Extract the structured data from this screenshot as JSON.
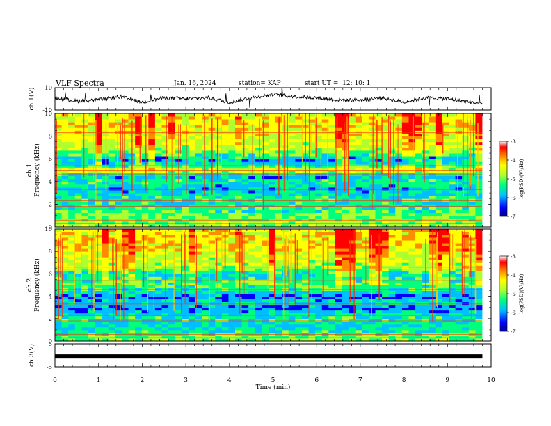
{
  "header": {
    "title": "VLF Spectra",
    "date": "Jan. 16, 2024",
    "station": "station= KAP",
    "start": "start UT =  12: 10: 1"
  },
  "chart_data": [
    {
      "type": "line",
      "panel": "ch1-waveform",
      "ylabel": "ch.1(V)",
      "ylim": [
        -10,
        10
      ],
      "ytick_labels": [
        "10",
        "-10"
      ],
      "xlim": [
        0,
        10
      ],
      "description_values": {
        "time_min": [
          0,
          0.5,
          1,
          1.5,
          2,
          2.5,
          3,
          3.5,
          4,
          4.5,
          5,
          5.5,
          6,
          6.5,
          7,
          7.5,
          8,
          8.5,
          9,
          9.5,
          9.8
        ],
        "level_v": [
          1,
          -2,
          -1,
          2,
          -3,
          1,
          0,
          1,
          -3,
          1,
          4,
          2,
          1,
          -1,
          -1,
          1,
          -3,
          1,
          0,
          -3,
          -4
        ]
      }
    },
    {
      "type": "heatmap",
      "panel": "ch1-spectrogram",
      "ylabel_top": "ch.1",
      "ylabel_bottom": "Frequency (kHz)",
      "ylim": [
        0,
        10
      ],
      "ytick_labels": [
        "0",
        "2",
        "4",
        "6",
        "8",
        "10"
      ],
      "xlim": [
        0,
        9.8
      ],
      "colorbar": {
        "label": "log(PSD)(V²/Hz)",
        "range": [
          -7,
          -3
        ],
        "tick_labels": [
          "-3",
          "-4",
          "-5",
          "-6",
          "-7"
        ]
      },
      "freq_profile_khz": [
        0,
        0.5,
        1,
        1.5,
        2,
        2.5,
        3,
        3.5,
        4,
        4.5,
        5,
        5.5,
        6,
        6.5,
        7,
        7.5,
        8,
        8.5,
        9,
        9.5,
        10
      ],
      "log_psd_profile": [
        -4.6,
        -4.9,
        -5.0,
        -5.2,
        -5.4,
        -5.3,
        -5.6,
        -5.7,
        -5.2,
        -5.8,
        -4.3,
        -5.5,
        -5.8,
        -5.0,
        -4.6,
        -4.6,
        -4.4,
        -4.3,
        -4.2,
        -4.2,
        -4.3
      ]
    },
    {
      "type": "heatmap",
      "panel": "ch2-spectrogram",
      "ylabel_top": "ch.2",
      "ylabel_bottom": "Frequency (kHz)",
      "ylim": [
        0,
        10
      ],
      "ytick_labels": [
        "0",
        "2",
        "4",
        "6",
        "8",
        "10"
      ],
      "xlim": [
        0,
        9.8
      ],
      "colorbar": {
        "label": "log(PSD)(V²/Hz)",
        "range": [
          -7,
          -3
        ],
        "tick_labels": [
          "-3",
          "-4",
          "-5",
          "-6",
          "-7"
        ]
      },
      "freq_profile_khz": [
        0,
        0.5,
        1,
        1.5,
        2,
        2.5,
        3,
        3.5,
        4,
        4.5,
        5,
        5.5,
        6,
        6.5,
        7,
        7.5,
        8,
        8.5,
        9,
        9.5,
        10
      ],
      "log_psd_profile": [
        -4.8,
        -5.1,
        -5.4,
        -5.5,
        -5.3,
        -5.6,
        -6.0,
        -5.5,
        -6.0,
        -5.4,
        -5.0,
        -5.3,
        -5.5,
        -4.8,
        -4.6,
        -4.6,
        -4.3,
        -4.2,
        -4.2,
        -4.1,
        -4.3
      ]
    },
    {
      "type": "line",
      "panel": "ch3-signal",
      "ylabel": "ch.3(V)",
      "ylim": [
        -5,
        5
      ],
      "ytick_labels": [
        "5",
        "-5"
      ],
      "xlim": [
        0,
        10
      ],
      "x": [
        0,
        9.8
      ],
      "y": [
        -0.5,
        -0.5
      ]
    }
  ],
  "xaxis": {
    "label": "Time (min)",
    "tick_labels": [
      "0",
      "1",
      "2",
      "3",
      "4",
      "5",
      "6",
      "7",
      "8",
      "9",
      "10"
    ]
  },
  "colors": {
    "colormap": [
      "#00008b",
      "#0000ff",
      "#00bfff",
      "#00ff7f",
      "#adff2f",
      "#ffff00",
      "#ff8c00",
      "#ff0000",
      "#ffffff"
    ],
    "trace": "#000000"
  }
}
